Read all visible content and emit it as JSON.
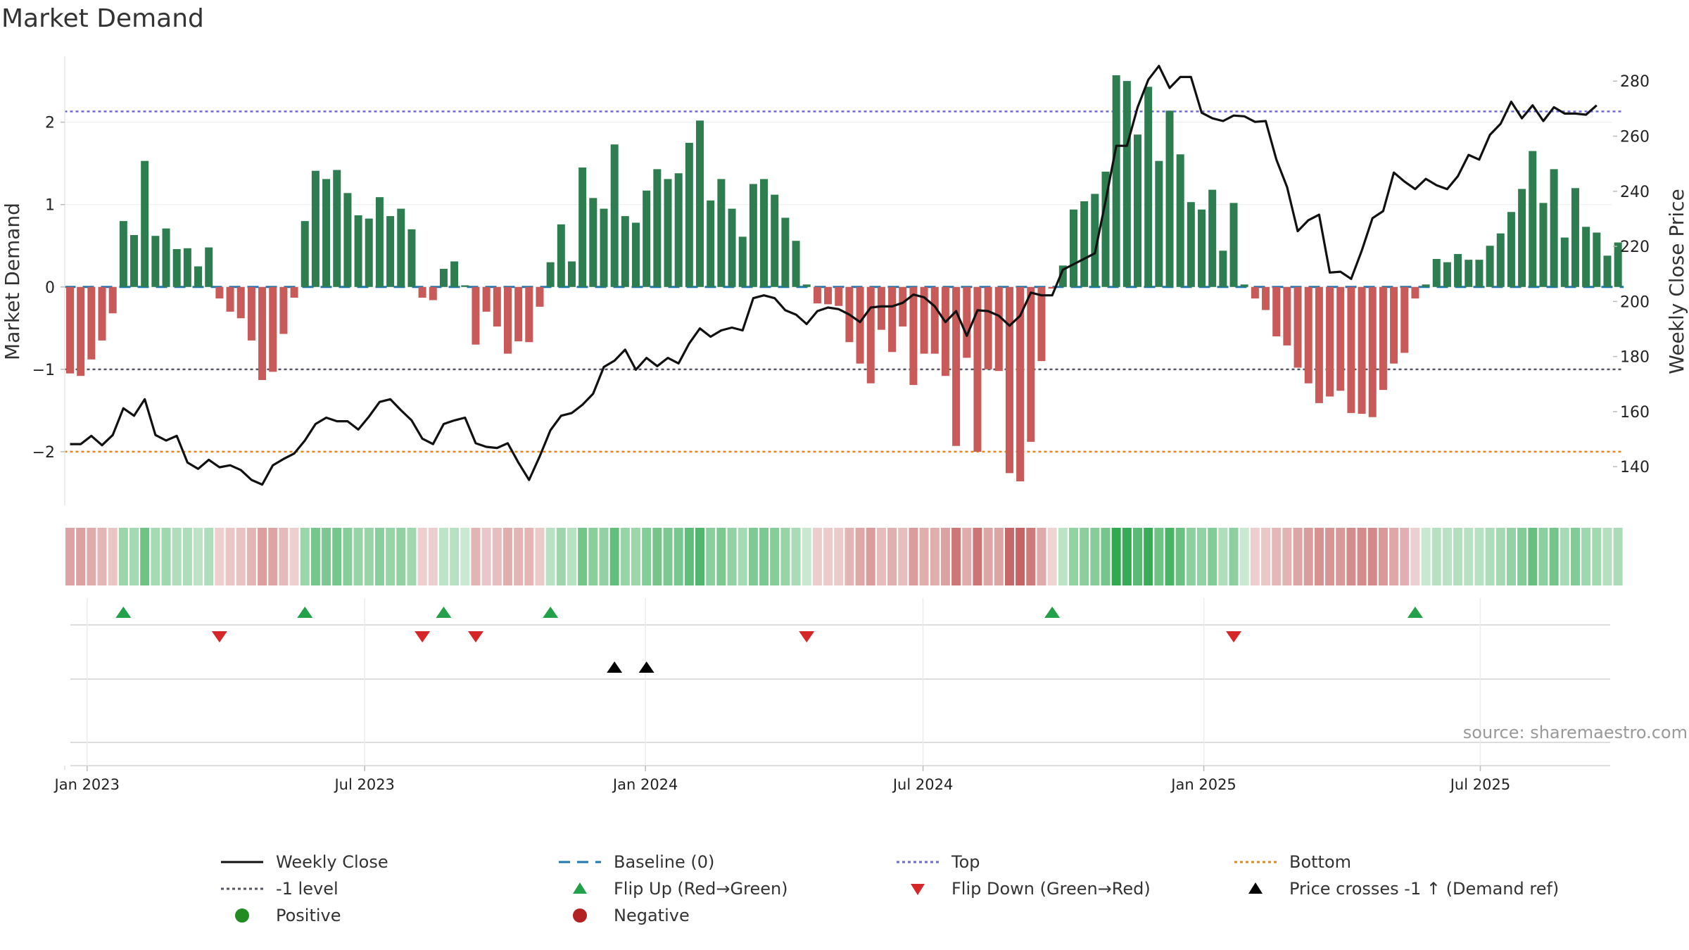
{
  "chart_data": {
    "type": "bar",
    "title": "Market Demand",
    "ylabel": "Market Demand",
    "y2label": "Weekly Close Price",
    "ylim": [
      -2.65,
      2.8
    ],
    "y2lim": [
      126,
      289
    ],
    "yticks": [
      2,
      1,
      0,
      -1,
      -2
    ],
    "ytick_labels": [
      "2",
      "1",
      "0",
      "−1",
      "−2"
    ],
    "y2ticks": [
      280,
      260,
      240,
      220,
      200,
      180,
      160,
      140
    ],
    "reference_lines": {
      "baseline": 0,
      "top": 2.13,
      "minus_one": -1,
      "bottom": -2
    },
    "start_date": "2022-12-23",
    "x_ticks": [
      {
        "label": "Jan 2023",
        "week": 1.6
      },
      {
        "label": "Jul 2023",
        "week": 27.6
      },
      {
        "label": "Jan 2024",
        "week": 53.9
      },
      {
        "label": "Jul 2024",
        "week": 79.9
      },
      {
        "label": "Jan 2025",
        "week": 106.2
      },
      {
        "label": "Jul 2025",
        "week": 132.1
      }
    ],
    "demand": [
      -1.05,
      -1.08,
      -0.88,
      -0.65,
      -0.32,
      0.8,
      0.63,
      1.53,
      0.62,
      0.71,
      0.46,
      0.47,
      0.25,
      0.48,
      -0.14,
      -0.3,
      -0.38,
      -0.65,
      -1.13,
      -1.03,
      -0.57,
      -0.13,
      0.8,
      1.41,
      1.31,
      1.42,
      1.14,
      0.87,
      0.83,
      1.09,
      0.86,
      0.95,
      0.7,
      -0.13,
      -0.16,
      0.22,
      0.31,
      0.02,
      -0.7,
      -0.3,
      -0.48,
      -0.81,
      -0.66,
      -0.67,
      -0.24,
      0.3,
      0.76,
      0.31,
      1.45,
      1.08,
      0.95,
      1.73,
      0.86,
      0.78,
      1.17,
      1.43,
      1.31,
      1.38,
      1.75,
      2.02,
      1.05,
      1.31,
      0.95,
      0.61,
      1.25,
      1.31,
      1.12,
      0.84,
      0.56,
      0.03,
      -0.2,
      -0.21,
      -0.23,
      -0.67,
      -0.93,
      -1.17,
      -0.52,
      -0.79,
      -0.48,
      -1.19,
      -0.81,
      -0.81,
      -1.08,
      -1.93,
      -0.86,
      -2.0,
      -1.0,
      -1.02,
      -2.26,
      -2.36,
      -1.88,
      -0.9,
      -0.02,
      0.26,
      0.94,
      1.04,
      1.13,
      1.4,
      2.57,
      2.5,
      1.85,
      2.43,
      1.53,
      2.14,
      1.61,
      1.03,
      0.94,
      1.18,
      0.44,
      1.02,
      0.03,
      -0.14,
      -0.28,
      -0.6,
      -0.71,
      -0.98,
      -1.17,
      -1.41,
      -1.33,
      -1.26,
      -1.53,
      -1.54,
      -1.58,
      -1.25,
      -0.93,
      -0.8,
      -0.14,
      0.03,
      0.34,
      0.3,
      0.4,
      0.33,
      0.33,
      0.5,
      0.65,
      0.91,
      1.19,
      1.65,
      1.02,
      1.43,
      0.6,
      1.2,
      0.73,
      0.66,
      0.38,
      0.54
    ],
    "close": [
      148.2,
      148.2,
      151.2,
      147.8,
      151.5,
      161.2,
      158.5,
      164.5,
      151.5,
      149.5,
      151.2,
      141.5,
      139.2,
      142.5,
      139.8,
      140.5,
      138.8,
      135.2,
      133.5,
      140.5,
      142.8,
      144.8,
      149.5,
      155.5,
      157.8,
      156.5,
      156.5,
      153.5,
      158.2,
      163.5,
      164.5,
      160.5,
      156.8,
      150.2,
      148.2,
      155.5,
      156.8,
      157.8,
      148.5,
      147.2,
      146.8,
      148.5,
      141.5,
      135.2,
      143.8,
      153.2,
      158.5,
      159.5,
      162.5,
      166.5,
      176.2,
      178.5,
      182.5,
      175.2,
      179.5,
      176.5,
      179.5,
      177.5,
      184.8,
      190.2,
      187.2,
      189.5,
      190.5,
      189.5,
      201.2,
      202.2,
      201.2,
      196.8,
      195.2,
      191.8,
      196.5,
      197.8,
      197.2,
      195.2,
      192.5,
      197.8,
      198.2,
      198.2,
      199.5,
      202.5,
      201.5,
      198.2,
      192.5,
      196.5,
      187.5,
      196.8,
      196.5,
      194.8,
      191.2,
      194.8,
      203.2,
      202.2,
      202.2,
      211.5,
      213.5,
      215.5,
      217.5,
      236.5,
      256.5,
      256.5,
      270.5,
      280.5,
      285.5,
      277.5,
      281.5,
      281.5,
      268.5,
      266.5,
      265.5,
      267.5,
      267.2,
      265.2,
      265.5,
      251.5,
      241.5,
      225.5,
      229.5,
      231.5,
      210.5,
      210.8,
      208.2,
      218.5,
      230.2,
      232.8,
      246.8,
      243.5,
      240.8,
      244.5,
      242.2,
      240.8,
      245.5,
      253.2,
      251.5,
      260.5,
      264.5,
      272.5,
      266.5,
      271.2,
      265.5,
      270.5,
      268.2,
      268.2,
      267.8,
      271.2
    ],
    "flip_up_weeks": [
      5,
      22,
      35,
      45,
      92,
      126
    ],
    "flip_down_weeks": [
      14,
      33,
      38,
      69,
      109
    ],
    "price_cross_weeks": [
      51,
      54
    ],
    "source": "source: sharemaestro.com",
    "legend": [
      {
        "key": "weekly-close",
        "label": "Weekly Close"
      },
      {
        "key": "baseline",
        "label": "Baseline (0)"
      },
      {
        "key": "top",
        "label": "Top"
      },
      {
        "key": "bottom",
        "label": "Bottom"
      },
      {
        "key": "minus-one",
        "label": "-1 level"
      },
      {
        "key": "flip-up",
        "label": "Flip Up (Red→Green)"
      },
      {
        "key": "flip-down",
        "label": "Flip Down (Green→Red)"
      },
      {
        "key": "price-cross",
        "label": "Price crosses -1 ↑ (Demand ref)"
      },
      {
        "key": "positive",
        "label": "Positive"
      },
      {
        "key": "negative",
        "label": "Negative"
      }
    ]
  },
  "colors": {
    "positive_bar": "#2e7d50",
    "negative_bar": "#c85a5a",
    "close_line": "#111111",
    "baseline": "#1f77b4",
    "top": "#6a6ad0",
    "bottom": "#e08a1e",
    "minus_one": "#555566",
    "flip_up": "#22a04a",
    "flip_down": "#d62728",
    "price_cross": "#000000",
    "positive_dot": "#228b22",
    "negative_dot": "#b22222"
  }
}
